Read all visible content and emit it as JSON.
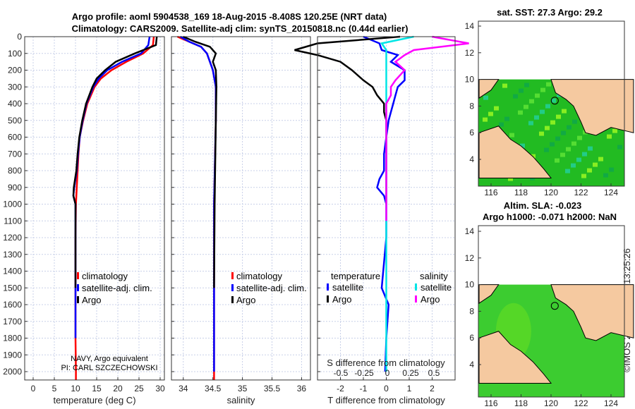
{
  "titles": {
    "line1": "Argo profile: aoml 5904538_169 18-Aug-2015 -8.408S 120.25E (NRT data)",
    "line2": "Climatology: CARS2009. Satellite-adj clim: synTS_20150818.nc (0.44d earlier)",
    "map1": "sat. SST: 27.3 Argo: 29.2",
    "map2a": "Altim. SLA: -0.023",
    "map2b": "Argo h1000: -0.071 h2000: NaN",
    "side": "©IMOS 20-Sep-2024 13:25:26"
  },
  "colors": {
    "climatology": "#ff0000",
    "satellite": "#0000ff",
    "argo": "#000000",
    "sal_sat": "#00e5e5",
    "sal_argo": "#ff00ff",
    "land": "#f5c9a0",
    "ocean": "#33cc33"
  },
  "chart_data": [
    {
      "type": "line",
      "xlabel": "temperature (deg C)",
      "xlim": [
        -2,
        31
      ],
      "ylim": [
        2050,
        0
      ],
      "xticks": [
        0,
        5,
        10,
        15,
        20,
        25,
        30
      ],
      "yticks": [
        0,
        100,
        200,
        300,
        400,
        500,
        600,
        700,
        800,
        900,
        1000,
        1100,
        1200,
        1300,
        1400,
        1500,
        1600,
        1700,
        1800,
        1900,
        2000
      ],
      "legend": [
        "climatology",
        "satellite-adj. clim.",
        "Argo"
      ],
      "annotation": [
        "NAVY, Argo equivalent",
        "PI: CARL SZCZECHOWSKI"
      ],
      "depth": [
        0,
        50,
        100,
        150,
        200,
        250,
        300,
        400,
        500,
        600,
        700,
        800,
        900,
        950,
        1000,
        1200,
        1500,
        1800,
        2000,
        2050
      ],
      "series": [
        {
          "name": "climatology",
          "values": [
            28.5,
            28.3,
            26,
            22,
            18.5,
            16,
            14.5,
            12.8,
            11.8,
            11,
            10.7,
            10.5,
            10.3,
            10.2,
            10.1,
            10,
            10,
            10,
            10.1,
            10.1
          ]
        },
        {
          "name": "satellite-adj. clim.",
          "values": [
            27.5,
            27.2,
            25.5,
            21,
            17.5,
            15.5,
            14.2,
            12.6,
            11.7,
            11,
            10.6,
            10.3,
            9.7,
            9.5,
            10,
            10,
            10,
            10,
            null,
            null
          ]
        },
        {
          "name": "Argo",
          "values": [
            29.2,
            29,
            24,
            19.5,
            17,
            15,
            14,
            12.5,
            11.6,
            10.9,
            10.5,
            10.2,
            9.6,
            9.5,
            10,
            10,
            10,
            null,
            null,
            null
          ]
        }
      ]
    },
    {
      "type": "line",
      "xlabel": "salinity",
      "xlim": [
        33.8,
        36.15
      ],
      "xticks": [
        "34",
        "34.5",
        "35",
        "35.5",
        "36"
      ],
      "legend": [
        "climatology",
        "satellite-adj. clim.",
        "Argo"
      ],
      "depth": [
        0,
        30,
        60,
        100,
        150,
        200,
        300,
        500,
        1000,
        1500,
        2000,
        2050
      ],
      "series": [
        {
          "name": "climatology",
          "values": [
            33.9,
            34.1,
            34.3,
            34.4,
            34.45,
            34.5,
            34.55,
            34.55,
            34.52,
            34.52,
            34.52,
            34.52
          ]
        },
        {
          "name": "satellite-adj. clim.",
          "values": [
            33.95,
            34.1,
            34.3,
            34.4,
            34.45,
            34.5,
            34.55,
            34.55,
            34.52,
            34.52,
            34.52,
            null
          ]
        },
        {
          "name": "Argo",
          "values": [
            34.0,
            34.2,
            34.45,
            34.55,
            34.5,
            34.55,
            34.56,
            34.55,
            34.53,
            34.52,
            null,
            null
          ]
        }
      ]
    },
    {
      "type": "line",
      "xlabel": "T difference from climatology",
      "xlabel2": "S difference from climatology",
      "xlim": [
        -3,
        3
      ],
      "xticks": [
        "-2",
        "-1",
        "0",
        "1",
        "2"
      ],
      "xticks2": [
        "-0.5",
        "-0.25",
        "0",
        "0.25",
        "0.5"
      ],
      "legend_headers": [
        "temperature",
        "salinity"
      ],
      "legend": [
        "satellite",
        "Argo",
        "satellite",
        "Argo"
      ],
      "depth": [
        0,
        40,
        80,
        110,
        150,
        200,
        260,
        300,
        350,
        400,
        450,
        500,
        600,
        700,
        800,
        850,
        900,
        950,
        1000,
        1100,
        1200,
        1500,
        1600,
        1800,
        2000
      ],
      "series": [
        {
          "name": "T satellite",
          "values": [
            -1,
            -0.3,
            -0.2,
            0.5,
            0.2,
            0.8,
            0.8,
            0.5,
            0.4,
            0.3,
            0.2,
            0.1,
            0,
            -0.1,
            -0.1,
            -0.3,
            -0.4,
            -0.1,
            0,
            0,
            0,
            -0.2,
            0.1,
            0,
            -0.05
          ]
        },
        {
          "name": "T Argo",
          "values": [
            0.6,
            -3,
            -4,
            -3,
            -2,
            -1.5,
            -1,
            -0.6,
            -0.4,
            -0.1,
            -0.1,
            0,
            0,
            0,
            0,
            0,
            0,
            0,
            0,
            null,
            null,
            null,
            null,
            null,
            null
          ]
        },
        {
          "name": "S satellite",
          "values": [
            0.3,
            -0.05,
            0,
            0,
            0,
            0,
            0,
            0,
            0,
            0,
            0,
            0,
            0,
            0,
            0,
            0,
            0,
            0,
            0,
            0,
            0,
            0,
            0,
            0,
            0
          ]
        },
        {
          "name": "S Argo",
          "values": [
            0.5,
            0.9,
            0.3,
            0.2,
            0.1,
            0.2,
            0.1,
            0.05,
            0.05,
            0,
            0,
            0,
            0,
            0,
            0,
            0,
            0,
            0,
            0,
            0,
            null,
            null,
            null,
            null,
            null
          ]
        }
      ]
    },
    {
      "type": "heatmap",
      "title": "sat. SST: 27.3 Argo: 29.2",
      "xticks": [
        "116",
        "118",
        "120",
        "122",
        "124"
      ],
      "yticks": [
        "4",
        "6",
        "8",
        "10",
        "12",
        "14"
      ]
    },
    {
      "type": "heatmap",
      "title": "Altim. SLA: -0.023",
      "xticks": [
        "116",
        "118",
        "120",
        "122",
        "124"
      ],
      "yticks": [
        "4",
        "6",
        "8",
        "10",
        "12",
        "14"
      ]
    }
  ]
}
